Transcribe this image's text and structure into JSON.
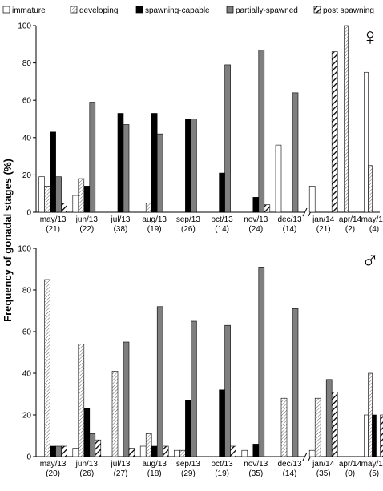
{
  "chart_data": [
    {
      "type": "bar",
      "ylabel": "Frequency of gonadal stages (%)",
      "symbol": "♀",
      "categories": [
        "may/13",
        "jun/13",
        "jul/13",
        "aug/13",
        "sep/13",
        "oct/13",
        "nov/13",
        "dec/13",
        "jan/14",
        "apr/14",
        "may/14"
      ],
      "n_labels": [
        "(21)",
        "(22)",
        "(38)",
        "(19)",
        "(26)",
        "(14)",
        "(24)",
        "(14)",
        "(21)",
        "(2)",
        "(4)"
      ],
      "ylim": [
        0,
        100
      ],
      "yticks": [
        0,
        20,
        40,
        60,
        80,
        100
      ],
      "series": [
        {
          "name": "immature",
          "color": "#ffffff",
          "values": [
            19,
            9,
            0,
            0,
            0,
            0,
            0,
            36,
            14,
            0,
            75
          ]
        },
        {
          "name": "developing",
          "color": "#ffffff",
          "hatch": "fine",
          "values": [
            14,
            18,
            0,
            5,
            0,
            0,
            0,
            0,
            0,
            100,
            25
          ]
        },
        {
          "name": "spawning-capable",
          "color": "#000000",
          "values": [
            43,
            14,
            53,
            53,
            50,
            21,
            8,
            0,
            0,
            0,
            0
          ]
        },
        {
          "name": "partially-spawned",
          "color": "#7f7f7f",
          "values": [
            19,
            59,
            47,
            42,
            50,
            79,
            87,
            64,
            0,
            0,
            0
          ]
        },
        {
          "name": "post spawning",
          "color": "#ffffff",
          "hatch": "bold",
          "values": [
            5,
            0,
            0,
            0,
            0,
            0,
            4,
            0,
            86,
            0,
            0
          ]
        }
      ]
    },
    {
      "type": "bar",
      "symbol": "♂",
      "categories": [
        "may/13",
        "jun/13",
        "jul/13",
        "aug/13",
        "sep/13",
        "oct/13",
        "nov/13",
        "dec/13",
        "jan/14",
        "apr/14",
        "may/14"
      ],
      "n_labels": [
        "(20)",
        "(26)",
        "(27)",
        "(18)",
        "(29)",
        "(19)",
        "(35)",
        "(14)",
        "(35)",
        "(0)",
        "(5)"
      ],
      "ylim": [
        0,
        100
      ],
      "yticks": [
        0,
        20,
        40,
        60,
        80,
        100
      ],
      "series": [
        {
          "color": "#ffffff",
          "values": [
            0,
            4,
            0,
            5,
            3,
            0,
            3,
            0,
            3,
            0,
            20
          ]
        },
        {
          "color": "#ffffff",
          "hatch": "fine",
          "values": [
            85,
            54,
            41,
            11,
            3,
            0,
            0,
            28,
            28,
            0,
            40
          ]
        },
        {
          "color": "#000000",
          "values": [
            5,
            23,
            0,
            5,
            27,
            32,
            6,
            0,
            0,
            0,
            20
          ]
        },
        {
          "color": "#7f7f7f",
          "values": [
            5,
            11,
            55,
            72,
            65,
            63,
            91,
            71,
            37,
            0,
            0
          ]
        },
        {
          "color": "#ffffff",
          "hatch": "bold",
          "values": [
            5,
            8,
            4,
            5,
            0,
            5,
            0,
            0,
            31,
            0,
            20
          ]
        }
      ]
    }
  ]
}
